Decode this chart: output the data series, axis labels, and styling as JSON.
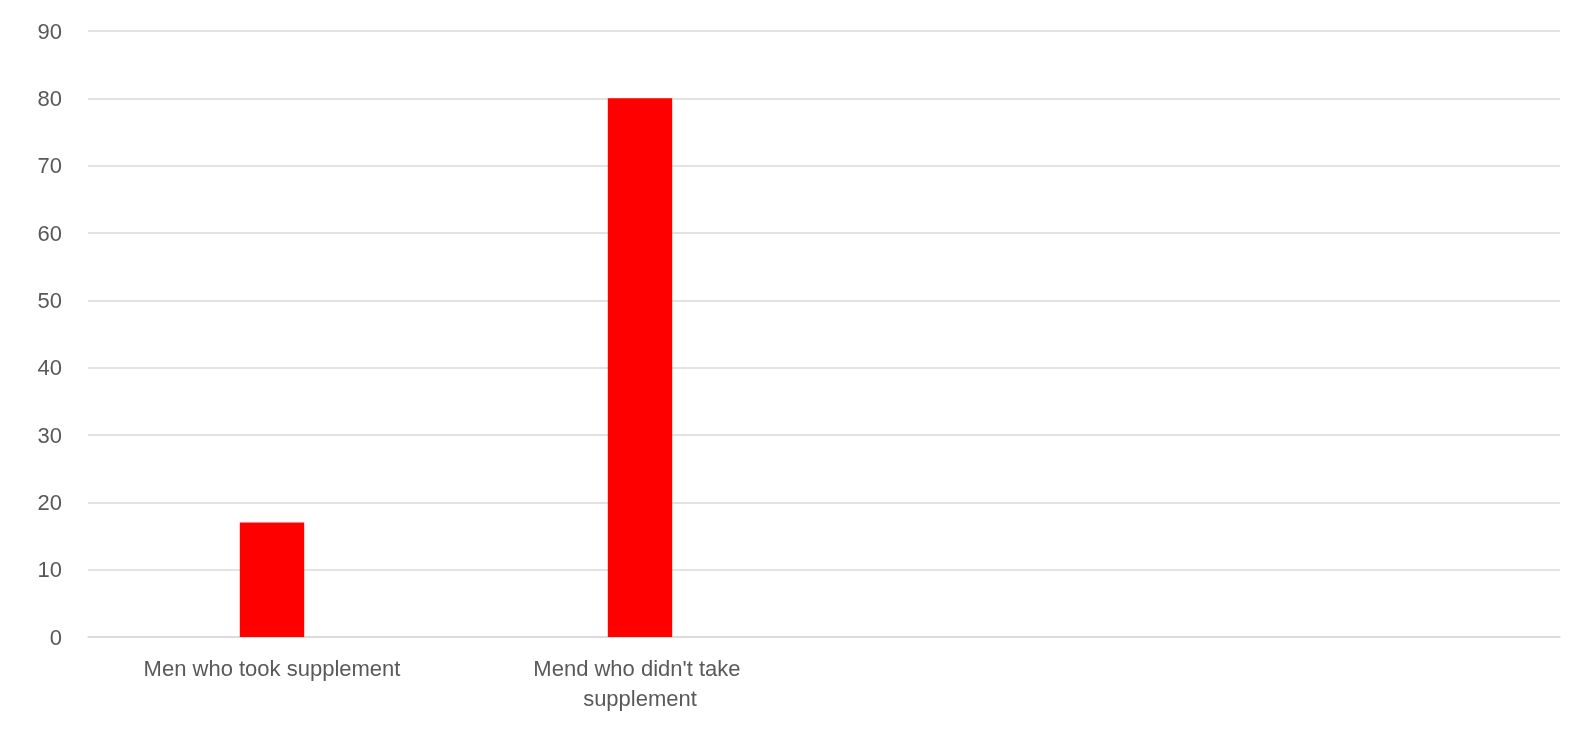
{
  "chart_data": {
    "type": "bar",
    "categories": [
      "Men who took supplement",
      "Mend who didn't take supplement",
      null,
      null
    ],
    "values": [
      17,
      80,
      null,
      null
    ],
    "color": "#ff0000",
    "ylim": [
      0,
      90
    ],
    "yticks": [
      0,
      10,
      20,
      30,
      40,
      50,
      60,
      70,
      80,
      90
    ],
    "grid": "y"
  }
}
